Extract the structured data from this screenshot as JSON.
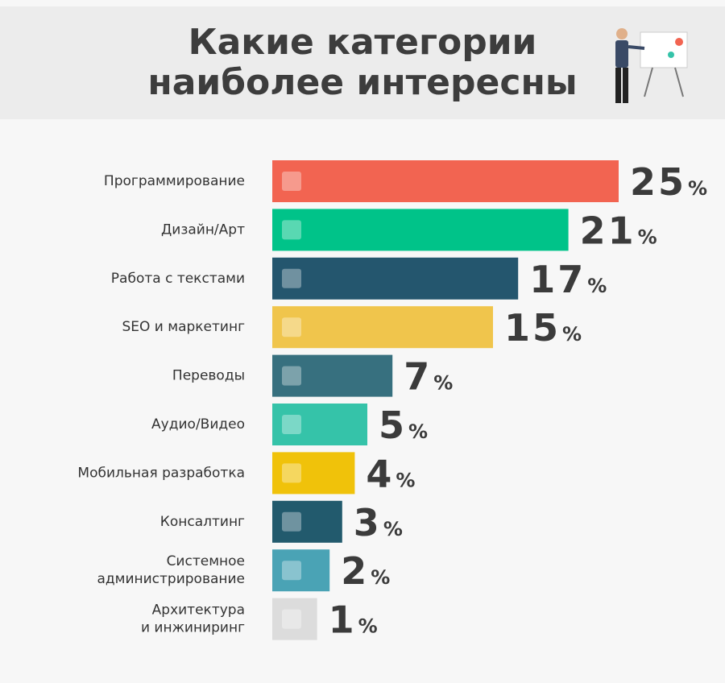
{
  "chart_data": {
    "type": "bar",
    "orientation": "horizontal",
    "title": [
      "Какие категории",
      "наиболее интересны"
    ],
    "categories": [
      [
        "Программирование"
      ],
      [
        "Дизайн/Арт"
      ],
      [
        "Работа с текстами"
      ],
      [
        "SEO и маркетинг"
      ],
      [
        "Переводы"
      ],
      [
        "Аудио/Видео"
      ],
      [
        "Мобильная разработка"
      ],
      [
        "Консалтинг"
      ],
      [
        "Системное",
        "администрирование"
      ],
      [
        "Архитектура",
        "и инжиниринг"
      ]
    ],
    "values": [
      25,
      21,
      17,
      15,
      7,
      5,
      4,
      3,
      2,
      1
    ],
    "unit": "%",
    "colors": [
      "#f26451",
      "#00c389",
      "#24566e",
      "#f0c54c",
      "#37707f",
      "#35c3a9",
      "#f0c20a",
      "#225a6d",
      "#4aa3b5",
      "#dcdcdc"
    ]
  }
}
